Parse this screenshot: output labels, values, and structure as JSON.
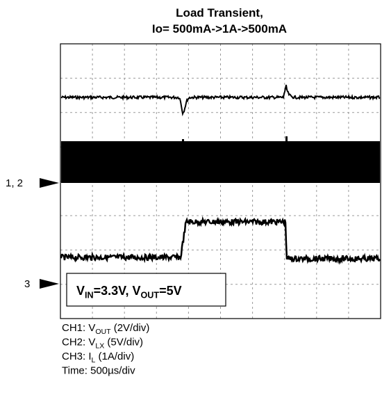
{
  "header": {
    "title": [
      "Load Transient,",
      "Io= 500mA->1A->500mA"
    ]
  },
  "markers": [
    "1, 2",
    "3"
  ],
  "annotation": [
    "V",
    "IN",
    "=3.3V, V",
    "OUT",
    "=5V"
  ],
  "legend": [
    [
      "CH1: V",
      "OUT",
      " (2V/div)"
    ],
    [
      "CH2: V",
      "LX",
      " (5V/div)"
    ],
    [
      "CH3: I",
      "L",
      " (1A/div)"
    ],
    [
      "Time: 500µs/div"
    ]
  ]
}
